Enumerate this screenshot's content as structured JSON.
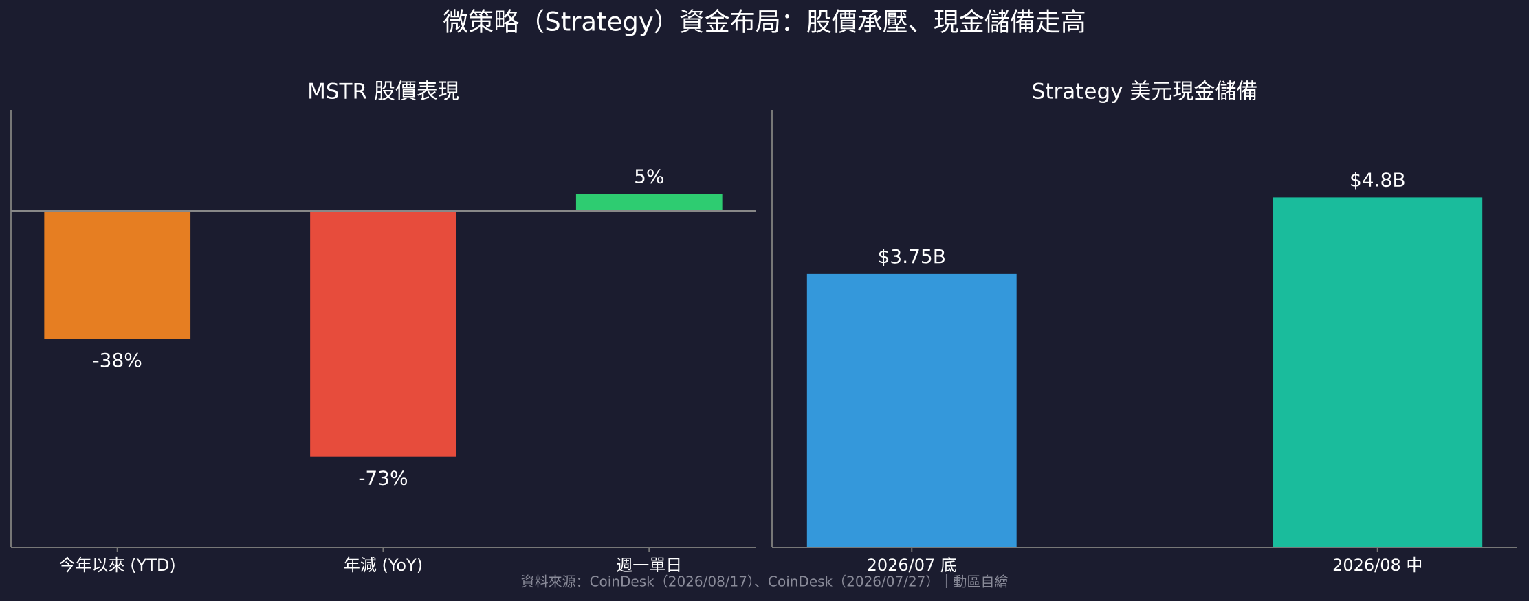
{
  "title": "微策略（Strategy）資金布局：股價承壓、現金儲備走高",
  "source": "資料來源：CoinDesk（2026/08/17）、CoinDesk（2026/07/27）｜動區自繪",
  "chart_data": [
    {
      "type": "bar",
      "title": "MSTR 股價表現",
      "categories": [
        "今年以來 (YTD)",
        "年減 (YoY)",
        "週一單日"
      ],
      "values": [
        -38,
        -73,
        5
      ],
      "value_labels": [
        "-38%",
        "-73%",
        "5%"
      ],
      "colors": [
        "#e67e22",
        "#e74c3c",
        "#2ecc71"
      ],
      "ylim": [
        -100,
        30
      ],
      "zero_line": true
    },
    {
      "type": "bar",
      "title": "Strategy 美元現金儲備",
      "categories": [
        "2026/07 底",
        "2026/08 中"
      ],
      "values": [
        3.75,
        4.8
      ],
      "value_labels": [
        "$3.75B",
        "$4.8B"
      ],
      "colors": [
        "#3498db",
        "#1abc9c"
      ],
      "ylim": [
        0,
        6
      ],
      "zero_line": false
    }
  ]
}
